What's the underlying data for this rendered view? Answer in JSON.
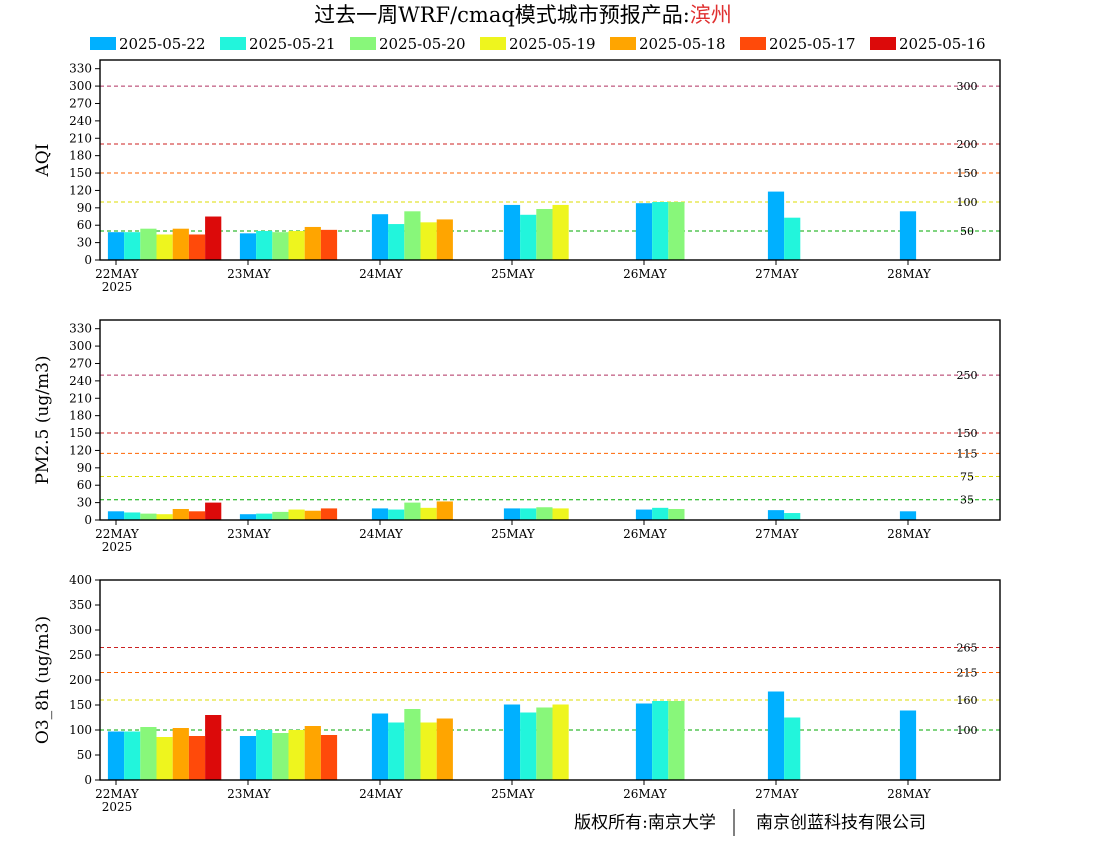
{
  "header": {
    "title_main": "过去一周WRF/cmaq模式城市预报产品:",
    "title_city": "滨州"
  },
  "footer": {
    "left": "版权所有:南京大学",
    "right": "南京创蓝科技有限公司"
  },
  "colors": {
    "2025-05-22": "#00b0ff",
    "2025-05-21": "#22f5dc",
    "2025-05-20": "#88f77a",
    "2025-05-19": "#eef51e",
    "2025-05-18": "#ffa500",
    "2025-05-17": "#ff4a0a",
    "2025-05-16": "#dc0a0a"
  },
  "chart_data": [
    {
      "type": "bar",
      "ylabel": "AQI",
      "ylim": [
        0,
        345
      ],
      "yticks": [
        0,
        30,
        60,
        90,
        120,
        150,
        180,
        210,
        240,
        270,
        300,
        330
      ],
      "categories": [
        "22MAY",
        "23MAY",
        "24MAY",
        "25MAY",
        "26MAY",
        "27MAY",
        "28MAY"
      ],
      "year_label": "2025",
      "thresholds": [
        {
          "value": 300,
          "label": "300",
          "color": "#b03060"
        },
        {
          "value": 200,
          "label": "200",
          "color": "#cc2222"
        },
        {
          "value": 150,
          "label": "150",
          "color": "#ff6600"
        },
        {
          "value": 100,
          "label": "100",
          "color": "#dddd00"
        },
        {
          "value": 50,
          "label": "50",
          "color": "#00aa00"
        }
      ],
      "series": [
        {
          "name": "2025-05-22",
          "values": [
            48,
            46,
            79,
            95,
            98,
            118,
            84
          ]
        },
        {
          "name": "2025-05-21",
          "values": [
            48,
            50,
            62,
            78,
            100,
            73,
            null
          ]
        },
        {
          "name": "2025-05-20",
          "values": [
            54,
            48,
            84,
            88,
            100,
            null,
            null
          ]
        },
        {
          "name": "2025-05-19",
          "values": [
            44,
            50,
            65,
            95,
            null,
            null,
            null
          ]
        },
        {
          "name": "2025-05-18",
          "values": [
            54,
            57,
            70,
            null,
            null,
            null,
            null
          ]
        },
        {
          "name": "2025-05-17",
          "values": [
            44,
            52,
            null,
            null,
            null,
            null,
            null
          ]
        },
        {
          "name": "2025-05-16",
          "values": [
            75,
            null,
            null,
            null,
            null,
            null,
            null
          ]
        }
      ]
    },
    {
      "type": "bar",
      "ylabel": "PM2.5 (ug/m3)",
      "ylim": [
        0,
        345
      ],
      "yticks": [
        0,
        30,
        60,
        90,
        120,
        150,
        180,
        210,
        240,
        270,
        300,
        330
      ],
      "categories": [
        "22MAY",
        "23MAY",
        "24MAY",
        "25MAY",
        "26MAY",
        "27MAY",
        "28MAY"
      ],
      "year_label": "2025",
      "thresholds": [
        {
          "value": 250,
          "label": "250",
          "color": "#b03060"
        },
        {
          "value": 150,
          "label": "150",
          "color": "#cc2222"
        },
        {
          "value": 115,
          "label": "115",
          "color": "#ff6600"
        },
        {
          "value": 75,
          "label": "75",
          "color": "#dddd00"
        },
        {
          "value": 35,
          "label": "35",
          "color": "#00aa00"
        }
      ],
      "series": [
        {
          "name": "2025-05-22",
          "values": [
            15,
            10,
            20,
            20,
            18,
            17,
            15
          ]
        },
        {
          "name": "2025-05-21",
          "values": [
            13,
            11,
            18,
            20,
            21,
            12,
            null
          ]
        },
        {
          "name": "2025-05-20",
          "values": [
            11,
            14,
            30,
            22,
            19,
            null,
            null
          ]
        },
        {
          "name": "2025-05-19",
          "values": [
            10,
            18,
            21,
            20,
            null,
            null,
            null
          ]
        },
        {
          "name": "2025-05-18",
          "values": [
            19,
            16,
            32,
            null,
            null,
            null,
            null
          ]
        },
        {
          "name": "2025-05-17",
          "values": [
            15,
            20,
            null,
            null,
            null,
            null,
            null
          ]
        },
        {
          "name": "2025-05-16",
          "values": [
            30,
            null,
            null,
            null,
            null,
            null,
            null
          ]
        }
      ]
    },
    {
      "type": "bar",
      "ylabel": "O3_8h (ug/m3)",
      "ylim": [
        0,
        400
      ],
      "yticks": [
        0,
        50,
        100,
        150,
        200,
        250,
        300,
        350,
        400
      ],
      "categories": [
        "22MAY",
        "23MAY",
        "24MAY",
        "25MAY",
        "26MAY",
        "27MAY",
        "28MAY"
      ],
      "year_label": "2025",
      "thresholds": [
        {
          "value": 265,
          "label": "265",
          "color": "#cc2222"
        },
        {
          "value": 215,
          "label": "215",
          "color": "#ff6600"
        },
        {
          "value": 160,
          "label": "160",
          "color": "#dddd00"
        },
        {
          "value": 100,
          "label": "100",
          "color": "#00aa00"
        }
      ],
      "series": [
        {
          "name": "2025-05-22",
          "values": [
            97,
            88,
            133,
            151,
            153,
            177,
            139
          ]
        },
        {
          "name": "2025-05-21",
          "values": [
            97,
            100,
            115,
            135,
            158,
            125,
            null
          ]
        },
        {
          "name": "2025-05-20",
          "values": [
            106,
            94,
            142,
            145,
            158,
            null,
            null
          ]
        },
        {
          "name": "2025-05-19",
          "values": [
            86,
            100,
            115,
            151,
            null,
            null,
            null
          ]
        },
        {
          "name": "2025-05-18",
          "values": [
            104,
            108,
            123,
            null,
            null,
            null,
            null
          ]
        },
        {
          "name": "2025-05-17",
          "values": [
            88,
            90,
            null,
            null,
            null,
            null,
            null
          ]
        },
        {
          "name": "2025-05-16",
          "values": [
            130,
            null,
            null,
            null,
            null,
            null,
            null
          ]
        }
      ]
    }
  ]
}
